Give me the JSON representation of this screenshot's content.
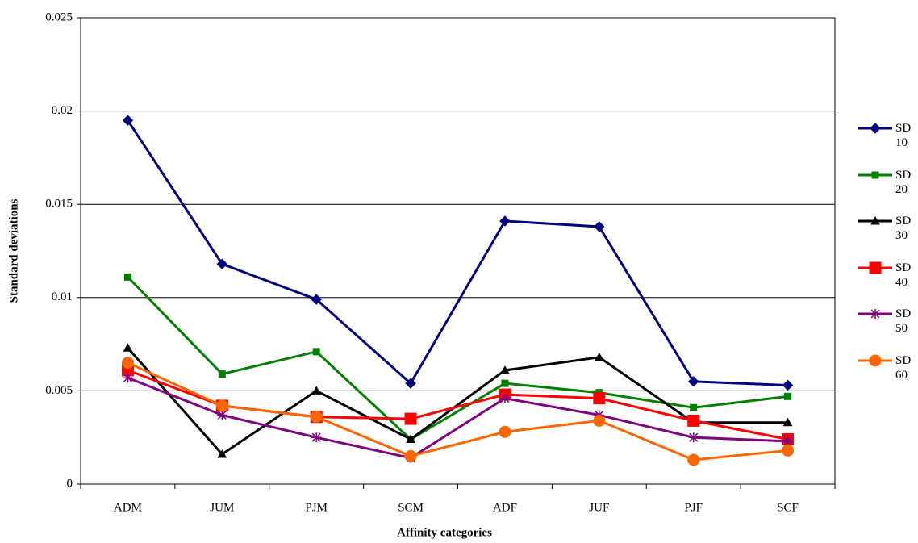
{
  "chart_data": {
    "type": "line",
    "x_label": "Affinity categories",
    "y_label": "Standard deviations",
    "categories": [
      "ADM",
      "JUM",
      "PJM",
      "SCM",
      "ADF",
      "JUF",
      "PJF",
      "SCF"
    ],
    "series": [
      {
        "name": "SD 10",
        "color": "#000080",
        "marker": "diamond",
        "values": [
          0.0195,
          0.0118,
          0.0099,
          0.0054,
          0.0141,
          0.0138,
          0.0055,
          0.0053
        ]
      },
      {
        "name": "SD 20",
        "color": "#008000",
        "marker": "square",
        "values": [
          0.0111,
          0.0059,
          0.0071,
          0.0024,
          0.0054,
          0.0049,
          0.0041,
          0.0047
        ]
      },
      {
        "name": "SD 30",
        "color": "#000000",
        "marker": "triangle",
        "values": [
          0.0073,
          0.0016,
          0.005,
          0.0024,
          0.0061,
          0.0068,
          0.0033,
          0.0033
        ]
      },
      {
        "name": "SD 40",
        "color": "#ff0000",
        "marker": "bigsquare",
        "values": [
          0.0061,
          0.0042,
          0.0036,
          0.0035,
          0.0048,
          0.0046,
          0.0034,
          0.0024
        ]
      },
      {
        "name": "SD 50",
        "color": "#800080",
        "marker": "star",
        "values": [
          0.0057,
          0.0037,
          0.0025,
          0.0014,
          0.0046,
          0.0037,
          0.0025,
          0.0023
        ]
      },
      {
        "name": "SD 60",
        "color": "#ff6600",
        "marker": "circle",
        "values": [
          0.0065,
          0.0042,
          0.0036,
          0.0015,
          0.0028,
          0.0034,
          0.0013,
          0.0018
        ]
      }
    ],
    "ylim": [
      0,
      0.025
    ],
    "yticks": [
      0,
      0.005,
      0.01,
      0.015,
      0.02,
      0.025
    ],
    "grid": true,
    "legend": "right"
  }
}
